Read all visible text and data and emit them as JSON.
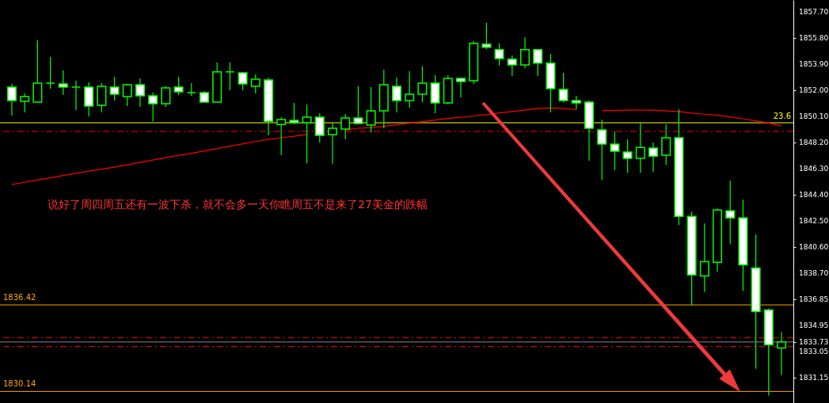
{
  "chart_data": {
    "type": "candlestick",
    "color": "#00ff00",
    "categories": [
      null,
      null,
      null,
      null,
      null,
      null,
      null,
      null,
      null,
      null,
      null,
      null,
      null,
      null,
      null,
      null,
      null,
      null,
      null,
      null,
      null,
      null,
      null,
      null,
      null,
      null,
      null,
      null,
      null,
      null,
      null,
      null,
      null,
      null,
      null,
      null,
      null,
      null,
      null,
      null,
      null,
      null,
      null,
      null,
      null,
      null,
      null,
      null,
      null,
      null,
      null,
      null,
      null,
      null,
      null,
      null,
      null,
      null,
      null,
      null,
      null
    ],
    "ohlc": [
      [
        1852.23,
        1852.46,
        1850.16,
        1851.25
      ],
      [
        1851.19,
        1851.77,
        1850.39,
        1851.54
      ],
      [
        1851.14,
        1855.63,
        1851.14,
        1852.52
      ],
      [
        1852.52,
        1854.42,
        1852.12,
        1852.52
      ],
      [
        1852.46,
        1853.44,
        1851.66,
        1852.23
      ],
      [
        1852.23,
        1852.69,
        1850.56,
        1852.23
      ],
      [
        1852.23,
        1852.58,
        1850.1,
        1850.85
      ],
      [
        1850.91,
        1852.52,
        1850.39,
        1852.29
      ],
      [
        1852.23,
        1852.98,
        1851.25,
        1851.71
      ],
      [
        1851.54,
        1852.46,
        1850.85,
        1852.4
      ],
      [
        1852.4,
        1852.86,
        1850.79,
        1851.6
      ],
      [
        1851.6,
        1851.83,
        1849.75,
        1851.02
      ],
      [
        1851.02,
        1852.29,
        1850.79,
        1852.17
      ],
      [
        1852.23,
        1852.98,
        1851.66,
        1851.89
      ],
      [
        1851.83,
        1852.52,
        1851.6,
        1851.83
      ],
      [
        1851.83,
        1851.94,
        1851.14,
        1851.14
      ],
      [
        1851.14,
        1854.02,
        1851.14,
        1853.33
      ],
      [
        1853.33,
        1854.02,
        1852.0,
        1853.33
      ],
      [
        1853.27,
        1853.33,
        1852.0,
        1852.46
      ],
      [
        1852.29,
        1853.15,
        1851.77,
        1852.81
      ],
      [
        1852.75,
        1852.92,
        1848.72,
        1849.75
      ],
      [
        1849.52,
        1850.04,
        1847.28,
        1849.87
      ],
      [
        1849.81,
        1851.08,
        1849.52,
        1849.64
      ],
      [
        1849.64,
        1850.96,
        1846.7,
        1850.04
      ],
      [
        1850.04,
        1850.33,
        1848.2,
        1848.72
      ],
      [
        1848.78,
        1849.64,
        1846.65,
        1849.24
      ],
      [
        1849.18,
        1850.27,
        1848.43,
        1849.99
      ],
      [
        1849.99,
        1852.29,
        1849.52,
        1849.58
      ],
      [
        1849.47,
        1852.23,
        1848.95,
        1850.5
      ],
      [
        1850.5,
        1853.5,
        1849.24,
        1852.4
      ],
      [
        1852.29,
        1852.92,
        1850.39,
        1851.25
      ],
      [
        1851.25,
        1853.38,
        1850.73,
        1851.71
      ],
      [
        1851.71,
        1853.73,
        1851.14,
        1852.52
      ],
      [
        1852.52,
        1853.09,
        1850.33,
        1851.08
      ],
      [
        1851.08,
        1853.09,
        1850.96,
        1852.86
      ],
      [
        1852.86,
        1852.92,
        1851.48,
        1852.63
      ],
      [
        1852.69,
        1855.57,
        1852.46,
        1855.4
      ],
      [
        1855.34,
        1856.89,
        1854.99,
        1855.11
      ],
      [
        1854.94,
        1855.4,
        1853.79,
        1854.3
      ],
      [
        1854.25,
        1854.53,
        1853.04,
        1853.84
      ],
      [
        1853.84,
        1855.86,
        1853.61,
        1854.94
      ],
      [
        1854.94,
        1854.99,
        1853.04,
        1853.96
      ],
      [
        1853.96,
        1854.65,
        1850.39,
        1852.12
      ],
      [
        1852.06,
        1853.27,
        1851.14,
        1851.25
      ],
      [
        1851.25,
        1851.6,
        1850.62,
        1851.08
      ],
      [
        1851.14,
        1851.25,
        1846.88,
        1849.24
      ],
      [
        1849.12,
        1849.87,
        1845.49,
        1848.09
      ],
      [
        1848.09,
        1849.01,
        1846.19,
        1847.57
      ],
      [
        1847.51,
        1848.43,
        1846.01,
        1847.05
      ],
      [
        1847.05,
        1849.64,
        1846.01,
        1847.85
      ],
      [
        1847.8,
        1848.2,
        1846.07,
        1847.22
      ],
      [
        1847.28,
        1849.52,
        1846.59,
        1848.55
      ],
      [
        1848.55,
        1850.62,
        1842.21,
        1842.85
      ],
      [
        1842.85,
        1843.19,
        1836.4,
        1838.59
      ],
      [
        1838.53,
        1842.33,
        1837.38,
        1839.56
      ],
      [
        1839.51,
        1843.42,
        1838.82,
        1843.31
      ],
      [
        1843.25,
        1845.44,
        1840.83,
        1842.73
      ],
      [
        1842.73,
        1844.06,
        1837.43,
        1839.33
      ],
      [
        1839.1,
        1841.52,
        1831.79,
        1835.94
      ],
      [
        1836.05,
        1836.17,
        1829.83,
        1833.52
      ],
      [
        1833.29,
        1834.44,
        1831.33,
        1833.73
      ]
    ],
    "series": [
      {
        "type": "line",
        "color": "#ff0000",
        "values": [
          1845.15,
          1845.32,
          1845.48,
          1845.64,
          1845.81,
          1845.97,
          1846.13,
          1846.27,
          1846.42,
          1846.59,
          1846.76,
          1846.93,
          1847.11,
          1847.28,
          1847.42,
          1847.6,
          1847.77,
          1847.94,
          1848.11,
          1848.28,
          1848.43,
          1848.55,
          1848.66,
          1848.79,
          null,
          null,
          1849.12,
          1849.24,
          1849.29,
          1849.38,
          1849.49,
          1849.61,
          1849.72,
          1849.84,
          1849.95,
          1850.04,
          1850.13,
          1850.23,
          1850.35,
          1850.45,
          1850.56,
          1850.68,
          1850.71,
          1850.68,
          1850.59,
          null,
          1850.52,
          1850.53,
          1850.56,
          1850.56,
          1850.56,
          1850.5,
          1850.45,
          1850.34,
          1850.26,
          1850.18,
          1850.07,
          1849.93,
          1849.78,
          1849.62,
          1849.41
        ]
      }
    ],
    "ylim": [
      1829.3,
      1858.55
    ],
    "yticks": [
      {
        "value": 1857.7,
        "label": "1857.70"
      },
      {
        "value": 1855.8,
        "label": "1855.80"
      },
      {
        "value": 1853.9,
        "label": "1853.90"
      },
      {
        "value": 1852,
        "label": "1852.00"
      },
      {
        "value": 1850.1,
        "label": "1850.10"
      },
      {
        "value": 1848.2,
        "label": "1848.20"
      },
      {
        "value": 1846.3,
        "label": "1846.30"
      },
      {
        "value": 1844.4,
        "label": "1844.40"
      },
      {
        "value": 1842.5,
        "label": "1842.50"
      },
      {
        "value": 1840.6,
        "label": "1840.60"
      },
      {
        "value": 1838.7,
        "label": "1838.70"
      },
      {
        "value": 1836.85,
        "label": "1836.85"
      },
      {
        "value": 1834.95,
        "label": "1834.95"
      },
      {
        "value": 1833.73,
        "label": "1833.73"
      },
      {
        "value": 1833.05,
        "label": "1833.05"
      },
      {
        "value": 1831.15,
        "label": "1831.15"
      }
    ],
    "tick_labels": "y",
    "ref_lines": [
      {
        "axis": "y",
        "value": 1849.64,
        "color": "#ffff00",
        "line_style": "solid"
      },
      {
        "axis": "y",
        "value": 1849.01,
        "color": "#ff0000",
        "line_style": "dashed"
      },
      {
        "axis": "y",
        "value": 1834.03,
        "color": "#ff0000",
        "line_style": "dashed"
      },
      {
        "axis": "y",
        "value": 1833.4,
        "color": "#ff0000",
        "line_style": "dashed"
      },
      {
        "axis": "y",
        "value": 1833.73,
        "color": "#808890",
        "line_style": "solid"
      },
      {
        "axis": "y",
        "value": 1836.42,
        "label": "1836.42",
        "color": "#ffa500",
        "line_style": "solid"
      },
      {
        "axis": "y",
        "value": 1830.14,
        "label": "1830.14",
        "color": "#ffa500",
        "line_style": "solid"
      }
    ],
    "annotations": [
      "说好了周四周五还有一波下杀，就不会多一天你瞧周五不是来了27美金的跌幅",
      {
        "text": "23.6",
        "y": 1849.64
      }
    ]
  }
}
